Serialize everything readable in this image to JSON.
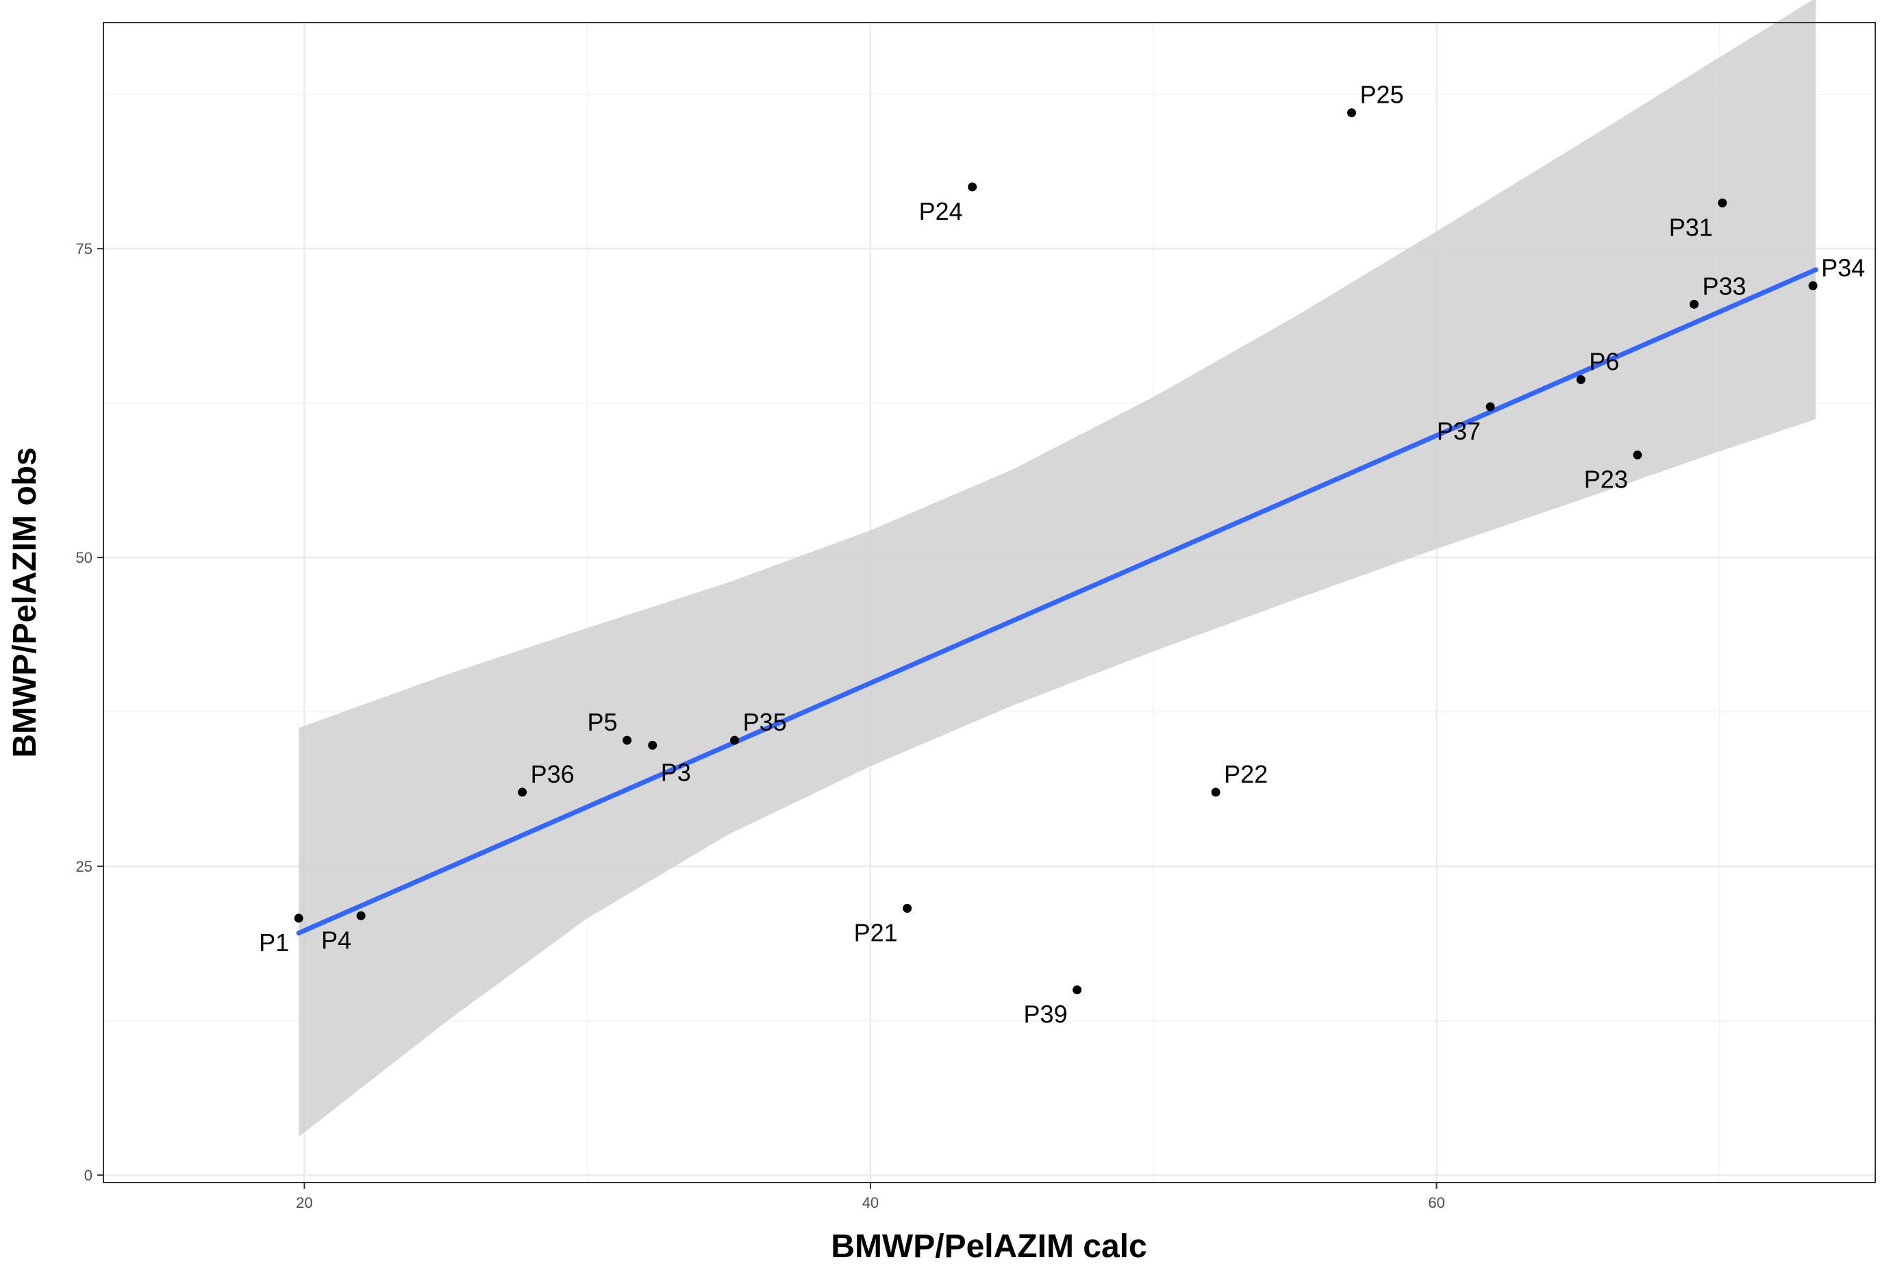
{
  "chart_data": {
    "type": "scatter",
    "title": "",
    "xlabel": "BMWP/PelAZIM calc",
    "ylabel": "BMWP/PelAZIM obs",
    "xlim": [
      12.9,
      75.5
    ],
    "ylim": [
      -0.6,
      93.3
    ],
    "x_ticks": [
      20,
      40,
      60
    ],
    "y_ticks": [
      0,
      25,
      50,
      75
    ],
    "x_ticks_minor": [
      30,
      50,
      70
    ],
    "y_ticks_minor": [
      12.5,
      37.5,
      62.5,
      87.5
    ],
    "grid": true,
    "colors": {
      "points": "#000000",
      "fit_line": "#3366FF",
      "ribbon": "#d0d0d0",
      "grid": "#ebebeb",
      "panel_border": "#333333"
    },
    "fit_line": {
      "x": [
        19.8,
        73.4
      ],
      "y": [
        19.6,
        73.3
      ]
    },
    "confidence_band": {
      "x": [
        19.8,
        25,
        30,
        35,
        40,
        45,
        50,
        55,
        60,
        65,
        70,
        73.4
      ],
      "upper": [
        36.2,
        40.5,
        44.3,
        48.0,
        52.2,
        57.1,
        63.0,
        69.5,
        76.4,
        83.4,
        90.5,
        95.3
      ],
      "lower": [
        3.1,
        12.4,
        20.8,
        27.6,
        33.1,
        38.0,
        42.4,
        46.6,
        50.7,
        54.6,
        58.6,
        61.2
      ]
    },
    "points": [
      {
        "label": "P1",
        "x": 19.8,
        "y": 20.8,
        "label_pos": "bl"
      },
      {
        "label": "P4",
        "x": 22.0,
        "y": 21.0,
        "label_pos": "bl"
      },
      {
        "label": "P36",
        "x": 27.7,
        "y": 31.0,
        "label_pos": "tr"
      },
      {
        "label": "P5",
        "x": 31.4,
        "y": 35.2,
        "label_pos": "tl"
      },
      {
        "label": "P3",
        "x": 32.3,
        "y": 34.8,
        "label_pos": "br"
      },
      {
        "label": "P35",
        "x": 35.2,
        "y": 35.2,
        "label_pos": "tr"
      },
      {
        "label": "P21",
        "x": 41.3,
        "y": 21.6,
        "label_pos": "bl"
      },
      {
        "label": "P24",
        "x": 43.6,
        "y": 80.0,
        "label_pos": "bl"
      },
      {
        "label": "P39",
        "x": 47.3,
        "y": 15.0,
        "label_pos": "bl"
      },
      {
        "label": "P22",
        "x": 52.2,
        "y": 31.0,
        "label_pos": "tr"
      },
      {
        "label": "P25",
        "x": 57.0,
        "y": 86.0,
        "label_pos": "tr"
      },
      {
        "label": "P37",
        "x": 61.9,
        "y": 62.2,
        "label_pos": "bl"
      },
      {
        "label": "P6",
        "x": 65.1,
        "y": 64.4,
        "label_pos": "tr"
      },
      {
        "label": "P23",
        "x": 67.1,
        "y": 58.3,
        "label_pos": "bl"
      },
      {
        "label": "P33",
        "x": 69.1,
        "y": 70.5,
        "label_pos": "tr"
      },
      {
        "label": "P31",
        "x": 70.1,
        "y": 78.7,
        "label_pos": "bl"
      },
      {
        "label": "P34",
        "x": 73.3,
        "y": 72.0,
        "label_pos": "tr"
      }
    ]
  }
}
